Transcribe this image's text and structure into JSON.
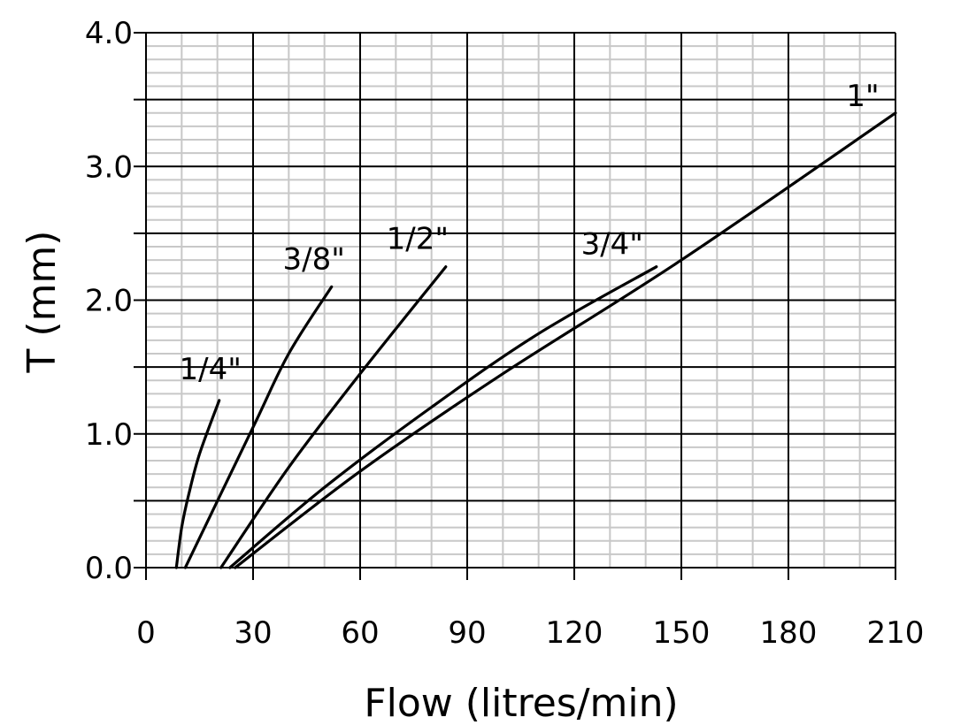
{
  "chart_data": {
    "type": "line",
    "title": "",
    "xlabel": "Flow (litres/min)",
    "ylabel": "T (mm)",
    "xlim": [
      0,
      210
    ],
    "ylim": [
      0.0,
      4.0
    ],
    "x_ticks": [
      0,
      30,
      60,
      90,
      120,
      150,
      180,
      210
    ],
    "x_tick_labels": [
      "0",
      "30",
      "60",
      "90",
      "120",
      "150",
      "180",
      "210"
    ],
    "y_ticks": [
      0.0,
      1.0,
      2.0,
      3.0,
      4.0
    ],
    "y_tick_labels": [
      "0.0",
      "1.0",
      "2.0",
      "3.0",
      "4.0"
    ],
    "grid": true,
    "legend": "none (labels placed at line ends)",
    "line_color": "#000000",
    "major_grid_color": "#000000",
    "minor_grid_color": "#c8c8c8",
    "series": [
      {
        "name": "1/4\"",
        "points": [
          [
            8.5,
            0.0
          ],
          [
            10,
            0.3
          ],
          [
            12,
            0.55
          ],
          [
            15,
            0.85
          ],
          [
            20.5,
            1.25
          ]
        ]
      },
      {
        "name": "3/8\"",
        "points": [
          [
            11,
            0.0
          ],
          [
            30,
            1.05
          ],
          [
            40,
            1.6
          ],
          [
            52,
            2.1
          ]
        ]
      },
      {
        "name": "1/2\"",
        "points": [
          [
            21,
            0.0
          ],
          [
            40,
            0.75
          ],
          [
            60,
            1.45
          ],
          [
            84,
            2.25
          ]
        ]
      },
      {
        "name": "3/4\"",
        "points": [
          [
            23.5,
            0.0
          ],
          [
            50,
            0.6
          ],
          [
            80,
            1.2
          ],
          [
            110,
            1.75
          ],
          [
            143,
            2.25
          ]
        ]
      },
      {
        "name": "1\"",
        "points": [
          [
            25,
            0.0
          ],
          [
            60,
            0.72
          ],
          [
            100,
            1.45
          ],
          [
            150,
            2.3
          ],
          [
            210,
            3.4
          ]
        ]
      }
    ]
  }
}
